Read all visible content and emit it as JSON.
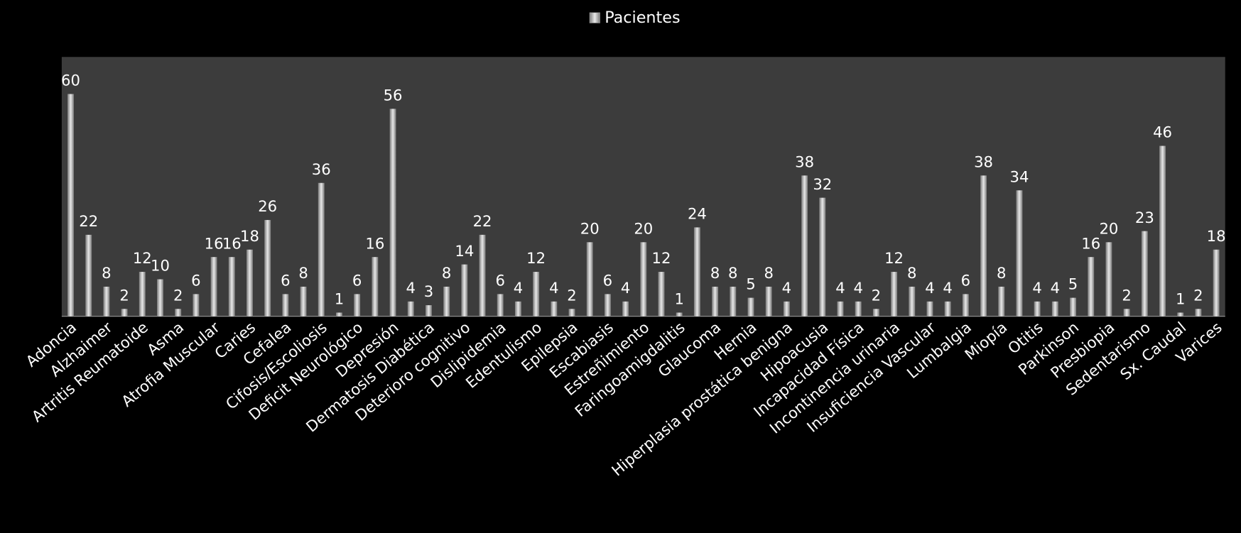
{
  "chart_data": {
    "type": "bar",
    "categories": [
      "Adoncia",
      null,
      "Alzhaimer",
      null,
      "Artritis Reumatoide",
      null,
      "Asma",
      null,
      "Atrofia Muscular",
      null,
      "Caries",
      null,
      "Cefalea",
      null,
      "Cifosis/Escoliosis",
      null,
      "Deficit Neurológico",
      null,
      "Depresión",
      null,
      "Dermatosis Diabética",
      null,
      "Deterioro cognitivo",
      null,
      "Dislipidemia",
      null,
      "Edentulismo",
      null,
      "Epilepsia",
      null,
      "Escabiasis",
      null,
      "Estreñimiento",
      null,
      "Faringoamigdalitis",
      null,
      "Glaucoma",
      null,
      "Hernia",
      null,
      "Hiperplasia prostática benigna",
      null,
      "Hipoacusia",
      null,
      "Incapacidad Física",
      null,
      "Incontinencia urinaria",
      null,
      "Insuficiencia Vascular",
      null,
      "Lumbalgia",
      null,
      "Miopía",
      null,
      "Otitis",
      null,
      "Parkinson",
      null,
      "Presbiopia",
      null,
      "Sedentarismo",
      null,
      "Sx. Caudal",
      null,
      "Varices"
    ],
    "series": [
      {
        "name": "Pacientes",
        "color": "#e8e8e8",
        "values": [
          60,
          22,
          8,
          2,
          12,
          10,
          2,
          6,
          16,
          16,
          18,
          26,
          6,
          8,
          36,
          1,
          6,
          16,
          56,
          4,
          3,
          8,
          14,
          22,
          6,
          4,
          12,
          4,
          2,
          20,
          6,
          4,
          20,
          12,
          1,
          24,
          8,
          8,
          5,
          8,
          4,
          38,
          32,
          4,
          4,
          2,
          12,
          8,
          4,
          4,
          6,
          38,
          8,
          34,
          4,
          4,
          5,
          16,
          20,
          2,
          23,
          46,
          1,
          2,
          18
        ]
      }
    ],
    "ylim": [
      0,
      70
    ],
    "legend": "top"
  }
}
